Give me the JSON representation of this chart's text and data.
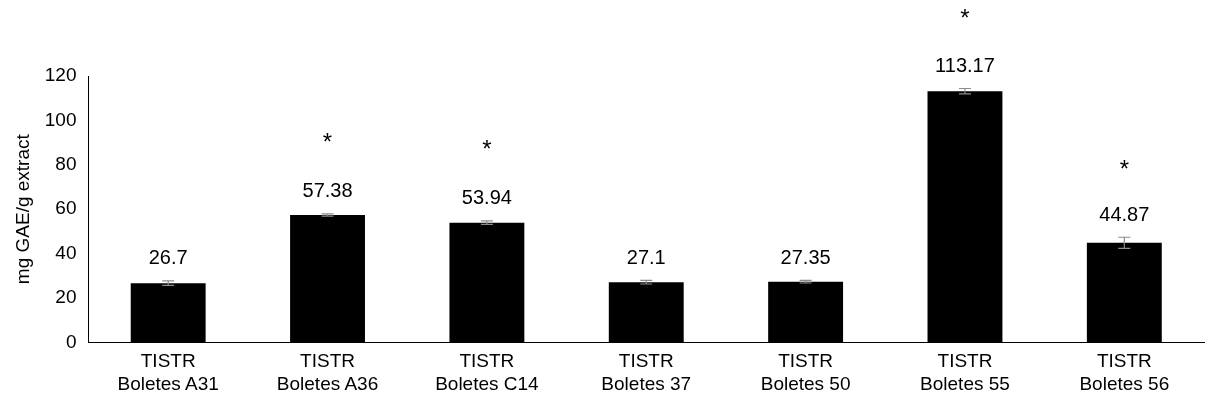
{
  "chart_data": {
    "type": "bar",
    "ylabel": "mg GAE/g extract",
    "categories": [
      "TISTR\nBoletes A31",
      "TISTR\nBoletes A36",
      "TISTR\nBoletes C14",
      "TISTR\nBoletes 37",
      "TISTR\nBoletes 50",
      "TISTR\nBoletes 55",
      "TISTR\nBoletes 56"
    ],
    "values": [
      26.7,
      57.38,
      53.94,
      27.1,
      27.35,
      113.17,
      44.87
    ],
    "errors": [
      1,
      0.5,
      0.8,
      0.8,
      0.6,
      1.2,
      2.5
    ],
    "color": "#000000",
    "ylim": [
      0,
      120
    ],
    "yticks": [
      0,
      20,
      40,
      60,
      80,
      100,
      120
    ],
    "grid": false,
    "legend": false,
    "data_labels": true,
    "annotations": [
      {
        "text": "*",
        "x": "TISTR\nBoletes A36",
        "y": 57.38
      },
      {
        "text": "*",
        "x": "TISTR\nBoletes C14",
        "y": 53.94
      },
      {
        "text": "*",
        "x": "TISTR\nBoletes 55",
        "y": 113.17
      },
      {
        "text": "*",
        "x": "TISTR\nBoletes 56",
        "y": 44.87
      }
    ]
  }
}
